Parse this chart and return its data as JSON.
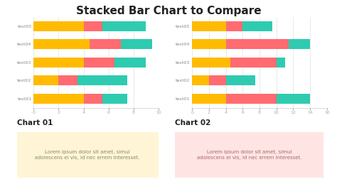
{
  "title": "Stacked Bar Chart to Compare",
  "title_fontsize": 11,
  "title_fontweight": "bold",
  "background_color": "#ffffff",
  "chart1": {
    "label": "Chart 01",
    "categories": [
      "text01",
      "text02",
      "text03",
      "text04",
      "text05"
    ],
    "series": [
      {
        "values": [
          4.0,
          2.0,
          4.0,
          4.5,
          4.0
        ],
        "color": "#FFBB00"
      },
      {
        "values": [
          1.5,
          1.5,
          2.5,
          2.5,
          1.5
        ],
        "color": "#FF6B70"
      },
      {
        "values": [
          2.0,
          4.0,
          2.5,
          2.5,
          3.5
        ],
        "color": "#2ECBB0"
      }
    ],
    "xlim": [
      0,
      10
    ],
    "xticks": [
      0,
      2,
      4,
      6,
      8,
      10
    ],
    "desc": "Lorem ipsum dolor sit amet, simul\nadolescens ei vis, id nec errem interesset.",
    "desc_bg": "#FFF5D6"
  },
  "chart2": {
    "label": "Chart 02",
    "categories": [
      "text01",
      "text02",
      "text03",
      "text04",
      "text05"
    ],
    "series": [
      {
        "values": [
          4.0,
          2.0,
          4.5,
          4.0,
          4.0
        ],
        "color": "#FFBB00"
      },
      {
        "values": [
          6.0,
          2.0,
          5.5,
          7.5,
          2.0
        ],
        "color": "#FF6B70"
      },
      {
        "values": [
          4.0,
          3.5,
          1.0,
          2.5,
          3.5
        ],
        "color": "#2ECBB0"
      }
    ],
    "xlim": [
      0,
      16
    ],
    "xticks": [
      0,
      2,
      4,
      6,
      8,
      10,
      12,
      14,
      16
    ],
    "desc": "Lorem ipsum dolor sit amet, simul\nadolescens ei vis, id nec errem interesset.",
    "desc_bg": "#FFE4E4"
  },
  "bar_height": 0.55,
  "tick_fontsize": 4.5,
  "label_fontsize": 4.5,
  "chart_label_fontsize": 7.5,
  "desc_fontsize": 5
}
